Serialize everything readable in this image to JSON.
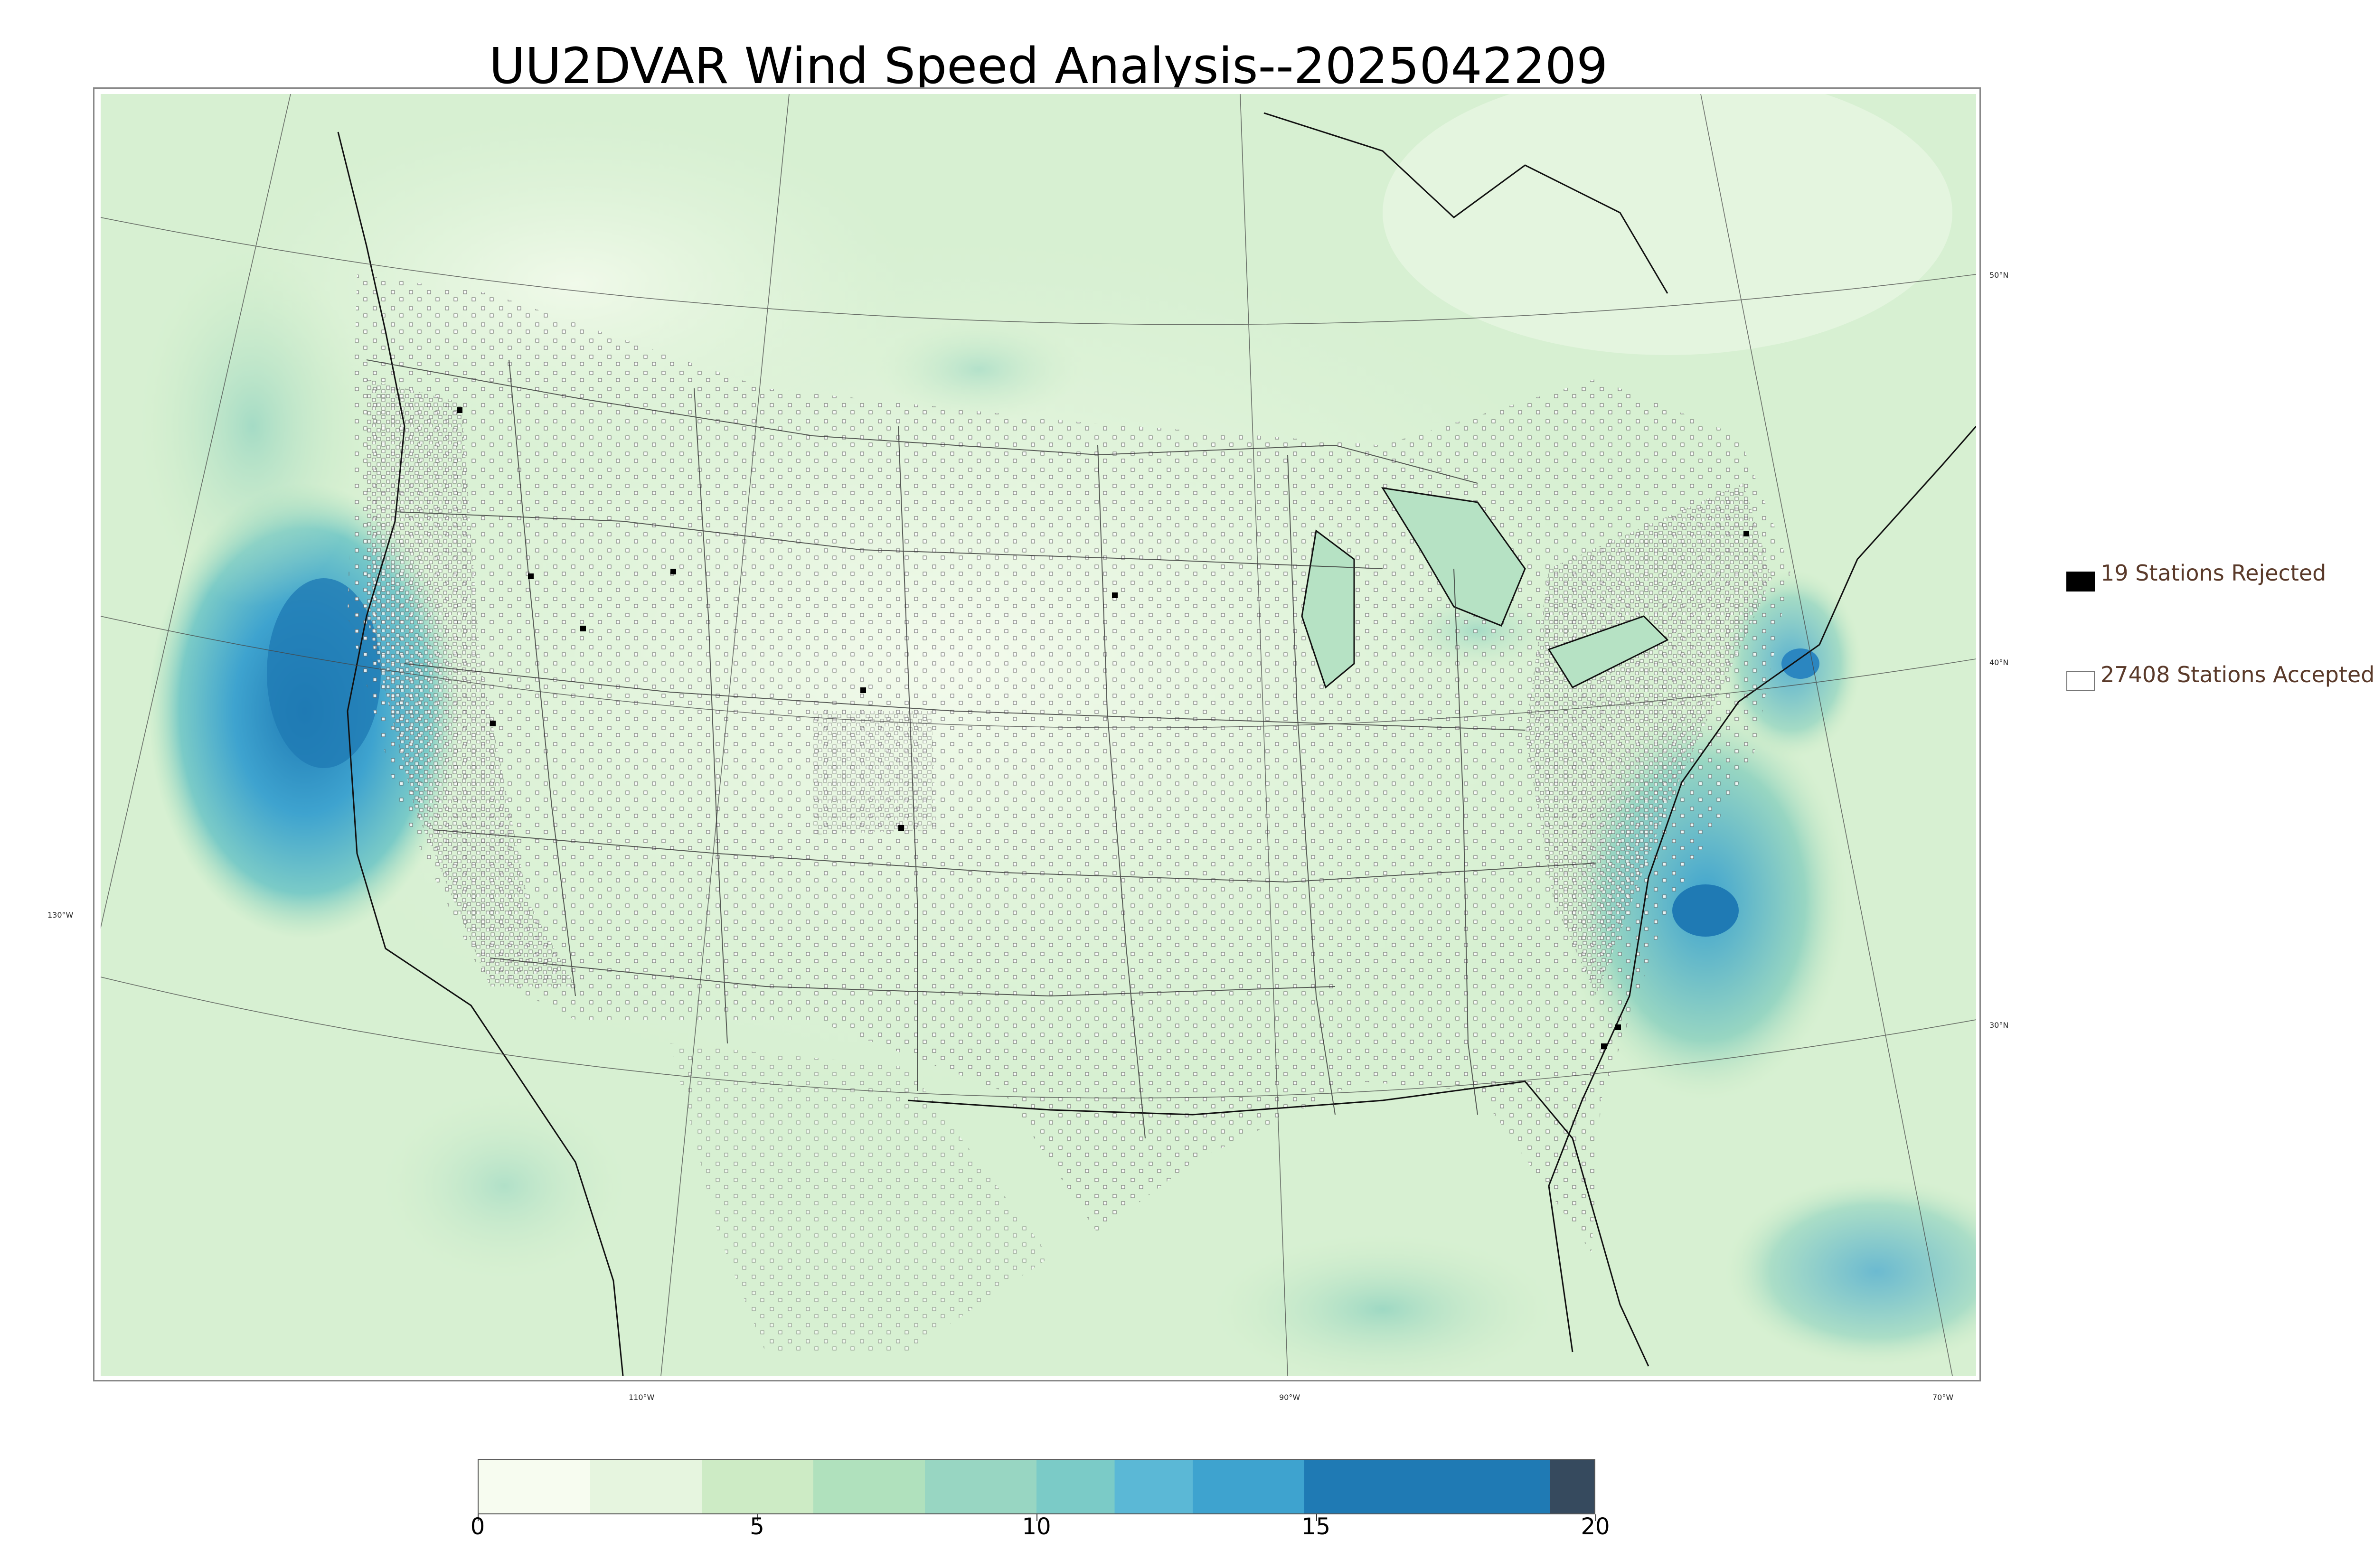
{
  "title": "UU2DVAR Wind Speed Analysis--2025042209",
  "map": {
    "longitude_labels": [
      "130°W",
      "110°W",
      "90°W",
      "70°W"
    ],
    "latitude_labels": [
      "50°N",
      "40°N",
      "30°N"
    ],
    "field_colors": {
      "calm": "#f2faee",
      "light": "#cfeecb",
      "moderate": "#9ed9c0",
      "fresh": "#5cb8d4",
      "strong": "#2b86c0",
      "max": "#344a5c"
    }
  },
  "legend": {
    "rejected_label": "19 Stations Rejected",
    "accepted_label": "27408 Stations Accepted",
    "rejected_color": "#000000",
    "accepted_color": "#ffffff"
  },
  "colorbar": {
    "min": 0,
    "max": 20,
    "tick_labels": [
      "0",
      "5",
      "10",
      "15",
      "20"
    ],
    "tick_values": [
      0,
      5,
      10,
      15,
      20
    ],
    "segments": [
      {
        "from": 0,
        "to": 2,
        "color": "#f7fcf0"
      },
      {
        "from": 2,
        "to": 4,
        "color": "#e6f5df"
      },
      {
        "from": 4,
        "to": 6,
        "color": "#cdebc5"
      },
      {
        "from": 6,
        "to": 8,
        "color": "#b0e1bd"
      },
      {
        "from": 8,
        "to": 10,
        "color": "#98d6c2"
      },
      {
        "from": 10,
        "to": 11.4,
        "color": "#7bcbc7"
      },
      {
        "from": 11.4,
        "to": 12.8,
        "color": "#5bb8d6"
      },
      {
        "from": 12.8,
        "to": 14.8,
        "color": "#3ea3cf"
      },
      {
        "from": 14.8,
        "to": 19.2,
        "color": "#1f7ab4"
      },
      {
        "from": 19.2,
        "to": 20,
        "color": "#364a5e"
      }
    ]
  }
}
